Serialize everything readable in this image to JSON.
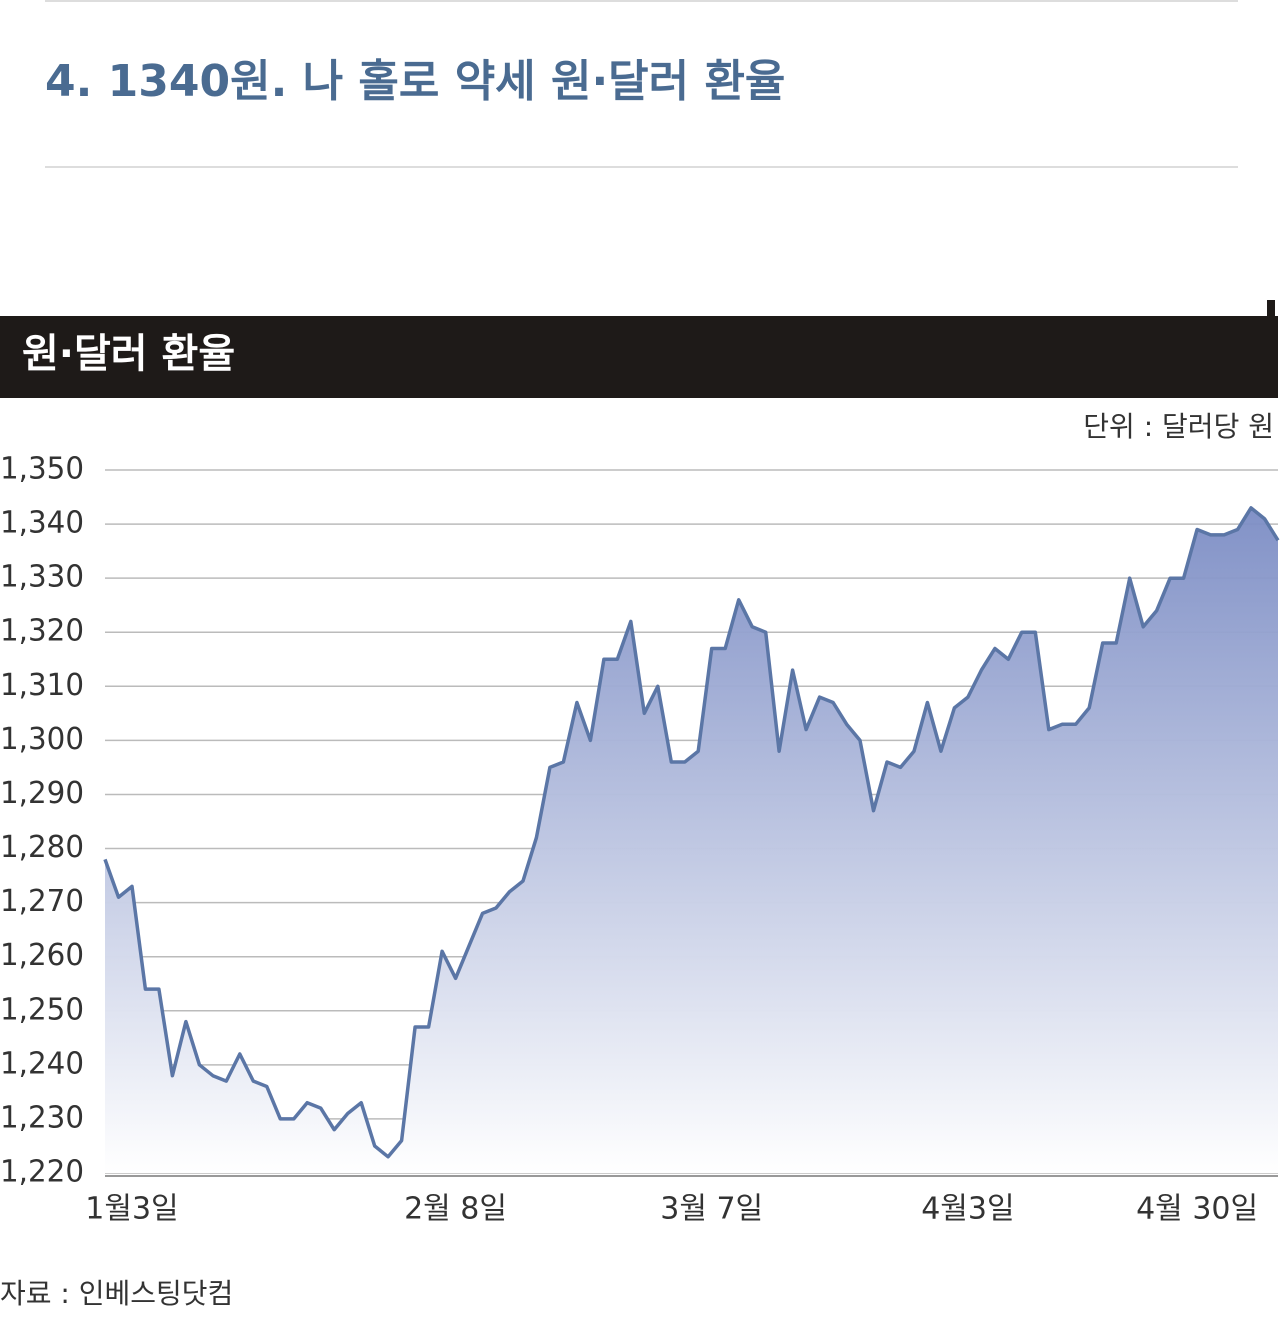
{
  "article": {
    "heading": "4. 1340원. 나 홀로 약세 원·달러 환율"
  },
  "chart_data": {
    "type": "area",
    "title": "원·달러 환율",
    "unit": "단위 : 달러당 원",
    "source": "자료 : 인베스팅닷컴",
    "categories": [
      null,
      null,
      "1월3일",
      null,
      null,
      null,
      null,
      null,
      null,
      null,
      null,
      null,
      null,
      null,
      null,
      null,
      null,
      null,
      null,
      null,
      null,
      null,
      null,
      null,
      null,
      null,
      "2월 8일",
      null,
      null,
      null,
      null,
      null,
      null,
      null,
      null,
      null,
      null,
      null,
      null,
      null,
      null,
      null,
      null,
      null,
      null,
      "3월 7일",
      null,
      null,
      null,
      null,
      null,
      null,
      null,
      null,
      null,
      null,
      null,
      null,
      null,
      null,
      null,
      null,
      null,
      null,
      "4월3일",
      null,
      null,
      null,
      null,
      null,
      null,
      null,
      null,
      null,
      null,
      null,
      null,
      null,
      null,
      null,
      null,
      "4월 30일",
      null,
      null,
      null,
      null,
      null,
      null
    ],
    "values": [
      1278,
      1271,
      1273,
      1254,
      1254,
      1238,
      1248,
      1240,
      1238,
      1237,
      1242,
      1237,
      1236,
      1230,
      1230,
      1233,
      1232,
      1228,
      1231,
      1233,
      1225,
      1223,
      1226,
      1247,
      1247,
      1261,
      1256,
      1262,
      1268,
      1269,
      1272,
      1274,
      1282,
      1295,
      1296,
      1307,
      1300,
      1315,
      1315,
      1322,
      1305,
      1310,
      1296,
      1296,
      1298,
      1317,
      1317,
      1326,
      1321,
      1320,
      1298,
      1313,
      1302,
      1308,
      1307,
      1303,
      1300,
      1287,
      1296,
      1295,
      1298,
      1307,
      1298,
      1306,
      1308,
      1313,
      1317,
      1315,
      1320,
      1320,
      1302,
      1303,
      1303,
      1306,
      1318,
      1318,
      1330,
      1321,
      1324,
      1330,
      1330,
      1339,
      1338,
      1338,
      1339,
      1343,
      1341,
      1337
    ],
    "color": "#5b76a6",
    "ylim": [
      1220,
      1350
    ],
    "yticks": [
      {
        "value": 1220,
        "label": "1,220"
      },
      {
        "value": 1230,
        "label": "1,230"
      },
      {
        "value": 1240,
        "label": "1,240"
      },
      {
        "value": 1250,
        "label": "1,250"
      },
      {
        "value": 1260,
        "label": "1,260"
      },
      {
        "value": 1270,
        "label": "1,270"
      },
      {
        "value": 1280,
        "label": "1,280"
      },
      {
        "value": 1290,
        "label": "1,290"
      },
      {
        "value": 1300,
        "label": "1,300"
      },
      {
        "value": 1310,
        "label": "1,310"
      },
      {
        "value": 1320,
        "label": "1,320"
      },
      {
        "value": 1330,
        "label": "1,330"
      },
      {
        "value": 1340,
        "label": "1,340"
      },
      {
        "value": 1350,
        "label": "1,350"
      }
    ],
    "grid": true
  }
}
